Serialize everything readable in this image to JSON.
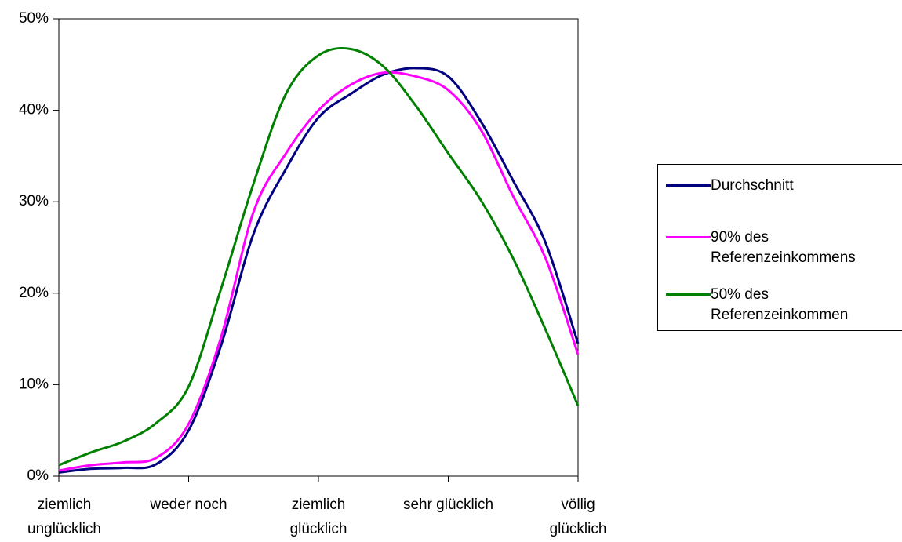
{
  "chart_data": {
    "type": "line",
    "x": [
      1,
      1.25,
      1.5,
      1.75,
      2,
      2.25,
      2.5,
      2.75,
      3,
      3.25,
      3.5,
      3.75,
      4,
      4.25,
      4.5,
      4.75,
      5
    ],
    "series": [
      {
        "name": "Durchschnitt",
        "color": "#000080",
        "values": [
          0.4,
          0.8,
          0.9,
          1.3,
          5.0,
          14.3,
          26.5,
          33.6,
          39.2,
          41.8,
          43.9,
          44.6,
          43.7,
          38.8,
          32.3,
          25.5,
          14.5
        ]
      },
      {
        "name": "90% des Referenzeinkommens",
        "color": "#ff00ff",
        "values": [
          0.6,
          1.2,
          1.5,
          2.0,
          5.7,
          15.2,
          28.9,
          35.3,
          40.0,
          42.8,
          44.1,
          43.7,
          42.2,
          37.9,
          30.6,
          23.8,
          13.3
        ]
      },
      {
        "name": "50% des Referenzeinkommen",
        "color": "#008000",
        "values": [
          1.2,
          2.6,
          3.8,
          5.8,
          9.8,
          20.5,
          32.0,
          41.8,
          46.0,
          46.7,
          44.8,
          40.5,
          35.3,
          30.2,
          23.8,
          16.0,
          7.7
        ]
      }
    ],
    "xlim": [
      1,
      5
    ],
    "xticks": [
      {
        "value": 1,
        "label": "ziemlich unglücklich"
      },
      {
        "value": 2,
        "label": "weder noch"
      },
      {
        "value": 3,
        "label": "ziemlich glücklich"
      },
      {
        "value": 4,
        "label": "sehr glücklich"
      },
      {
        "value": 5,
        "label": "völlig glücklich"
      }
    ],
    "ylim": [
      0,
      50
    ],
    "yticks": [
      {
        "value": 0,
        "label": "0%"
      },
      {
        "value": 10,
        "label": "10%"
      },
      {
        "value": 20,
        "label": "20%"
      },
      {
        "value": 30,
        "label": "30%"
      },
      {
        "value": 40,
        "label": "40%"
      },
      {
        "value": 50,
        "label": "50%"
      }
    ],
    "legend": "right"
  }
}
